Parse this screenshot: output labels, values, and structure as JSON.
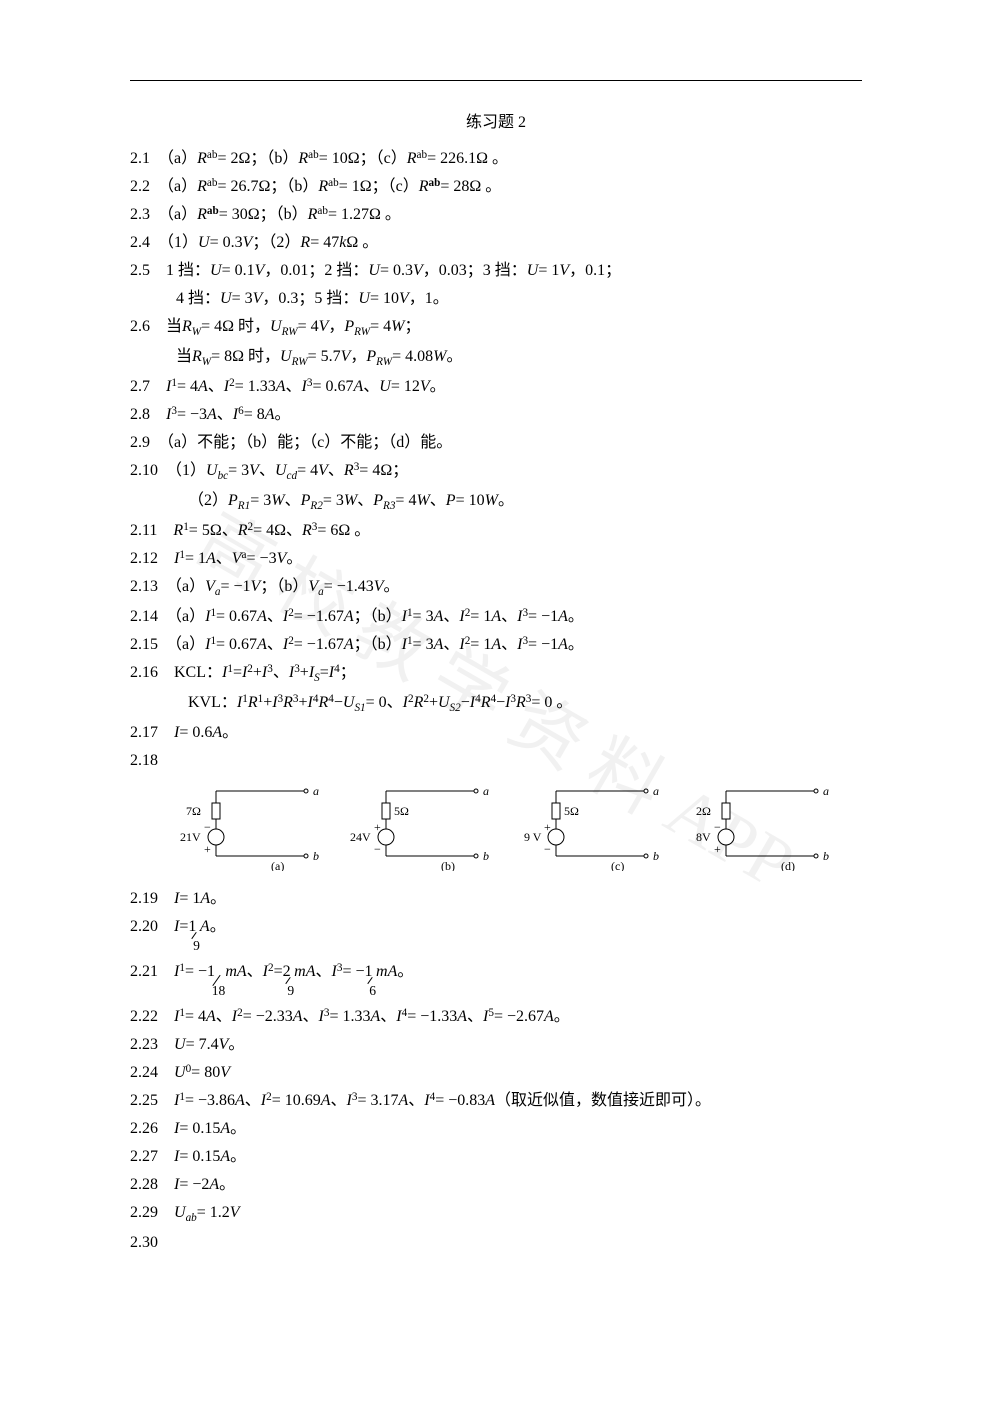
{
  "watermark": "高 校 教 学 资 料 APP",
  "title": "练习题 2",
  "lines": {
    "2_1": "2.1　（a）<span class='ital'>R</span><span class='sub'>ab</span> = 2Ω；（b）<span class='ital'>R</span><span class='sub'>ab</span> = 10Ω；（c）<span class='ital'>R</span><span class='sub'>ab</span> = 226.1Ω 。",
    "2_2": "2.2　（a）<span class='ital'>R</span><span class='sub'>ab</span> = 26.7Ω；（b）<span class='ital'>R</span><span class='sub'>ab</span> = 1Ω；（c）<span class='ital'>R</span><span class='sub'><b>ab</b></span> = 28Ω 。",
    "2_3": "2.3　（a）<span class='ital'>R</span><span class='sub'><b>ab</b></span> = 30Ω；（b）<span class='ital'>R</span><span class='sub'>ab</span> = 1.27Ω 。",
    "2_4": "2.4　（1）<span class='ital'>U</span> = 0.3<span class='ital'>V</span>；（2）<span class='ital'>R</span> = 47<span class='ital'>k</span>Ω 。",
    "2_5a": "2.5　1 挡：<span class='ital'>U</span> = 0.1<span class='ital'>V</span>，0.01；2 挡：<span class='ital'>U</span> = 0.3<span class='ital'>V</span>，0.03；3 挡：<span class='ital'>U</span> = 1<span class='ital'>V</span>，0.1；",
    "2_5b": "4 挡：<span class='ital'>U</span> = 3<span class='ital'>V</span>，0.3；5 挡：<span class='ital'>U</span> = 10<span class='ital'>V</span>，1。",
    "2_6a": "2.6　当 <span class='ital'>R<span class='sub'>W</span></span> = 4Ω 时，<span class='ital'>U<span class='sub'>RW</span></span> = 4<span class='ital'>V</span>，<span class='ital'>P<span class='sub'>RW</span></span> = 4<span class='ital'>W</span>；",
    "2_6b": "当 <span class='ital'>R<span class='sub'>W</span></span> = 8Ω 时，<span class='ital'>U<span class='sub'>RW</span></span> = 5.7<span class='ital'>V</span>，<span class='ital'>P<span class='sub'>RW</span></span> = 4.08<span class='ital'>W</span> 。",
    "2_7": "2.7　<span class='ital'>I</span><span class='sub'>1</span> = 4<span class='ital'>A</span>、<span class='ital'>I</span><span class='sub'>2</span> = 1.33<span class='ital'>A</span>、<span class='ital'>I</span><span class='sub'>3</span> = 0.67<span class='ital'>A</span>、<span class='ital'>U</span> = 12<span class='ital'>V</span> 。",
    "2_8": "2.8　<span class='ital'>I</span><span class='sub'>3</span> = −3<span class='ital'>A</span>、<span class='ital'>I</span><span class='sub'>6</span> = 8<span class='ital'>A</span> 。",
    "2_9": "2.9　（a）不能；（b）能；（c）不能；（d）能。",
    "2_10a": "2.10　（1）<span class='ital'>U<span class='sub'>bc</span></span> = 3<span class='ital'>V</span>、<span class='ital'>U<span class='sub'>cd</span></span> = 4<span class='ital'>V</span>、<span class='ital'>R</span><span class='sub'>3</span> = 4Ω；",
    "2_10b": "（2）<span class='ital'>P<span class='sub'>R1</span></span> = 3<span class='ital'>W</span>、<span class='ital'>P<span class='sub'>R2</span></span> = 3<span class='ital'>W</span>、<span class='ital'>P<span class='sub'>R3</span></span> = 4<span class='ital'>W</span>、<span class='ital'>P</span> = 10<span class='ital'>W</span> 。",
    "2_11": "2.11　<span class='ital'>R</span><span class='sub'>1</span> = 5Ω、<span class='ital'>R</span><span class='sub'>2</span> = 4Ω、<span class='ital'>R</span><span class='sub'>3</span> = 6Ω 。",
    "2_12": "2.12　<span class='ital'>I</span><span class='sub'>1</span> = 1<span class='ital'>A</span>、<span class='ital'>V</span><span class='sub'>a</span> = −3<span class='ital'>V</span> 。",
    "2_13": "2.13　（a）<span class='ital'>V<span class='sub'>a</span></span> = −1<span class='ital'>V</span>；（b）<span class='ital'>V<span class='sub'>a</span></span> = −1.43<span class='ital'>V</span> 。",
    "2_14": "2.14　（a）<span class='ital'>I</span><span class='sub'>1</span> = 0.67<span class='ital'>A</span>、<span class='ital'>I</span><span class='sub'>2</span> = −1.67<span class='ital'>A</span>；（b）<span class='ital'>I</span><span class='sub'>1</span> = 3<span class='ital'>A</span>、<span class='ital'>I</span><span class='sub'>2</span> = 1<span class='ital'>A</span>、<span class='ital'>I</span><span class='sub'>3</span> = −1<span class='ital'>A</span> 。",
    "2_15": "2.15　（a）<span class='ital'>I</span><span class='sub'>1</span> = 0.67<span class='ital'>A</span>、<span class='ital'>I</span><span class='sub'>2</span> = −1.67<span class='ital'>A</span>；（b）<span class='ital'>I</span><span class='sub'>1</span> = 3<span class='ital'>A</span>、<span class='ital'>I</span><span class='sub'>2</span> = 1<span class='ital'>A</span>、<span class='ital'>I</span><span class='sub'>3</span> = −1<span class='ital'>A</span> 。",
    "2_16a": "2.16　KCL：<span class='ital'>I</span><span class='sub'>1</span> = <span class='ital'>I</span><span class='sub'>2</span> + <span class='ital'>I</span><span class='sub'>3</span>、<span class='ital'>I</span><span class='sub'>3</span> + <span class='ital'>I<span class='sub'>S</span></span> = <span class='ital'>I</span><span class='sub'>4</span>；",
    "2_16b": "KVL：<span class='ital'>I</span><span class='sub'>1</span><span class='ital'>R</span><span class='sub'>1</span> + <span class='ital'>I</span><span class='sub'>3</span><span class='ital'>R</span><span class='sub'>3</span> + <span class='ital'>I</span><span class='sub'>4</span><span class='ital'>R</span><span class='sub'>4</span> − <span class='ital'>U<span class='sub'>S1</span></span> = 0、<span class='ital'>I</span><span class='sub'>2</span><span class='ital'>R</span><span class='sub'>2</span> + <span class='ital'>U<span class='sub'>S2</span></span> − <span class='ital'>I</span><span class='sub'>4</span><span class='ital'>R</span><span class='sub'>4</span> − <span class='ital'>I</span><span class='sub'>3</span><span class='ital'>R</span><span class='sub'>3</span> = 0 。",
    "2_17": "2.17　<span class='ital'>I</span> = 0.6<span class='ital'>A</span> 。",
    "2_18": "2.18",
    "2_19": "2.19　<span class='ital'>I</span> = 1<span class='ital'>A</span> 。",
    "2_20": "2.20　<span class='ital'>I</span> = <span class='frac'><span class='n'>1</span><span class='frac-line'></span><span class='d'>9</span></span> <span class='ital'>A</span> 。",
    "2_21": "2.21　<span class='ital'>I</span><span class='sub'>1</span> = − <span class='frac'><span class='n'>1</span><span class='frac-line'></span><span class='d'>18</span></span> <span class='ital'>mA</span>、<span class='ital'>I</span><span class='sub'>2</span> = <span class='frac'><span class='n'>2</span><span class='frac-line'></span><span class='d'>9</span></span> <span class='ital'>mA</span>、<span class='ital'>I</span><span class='sub'>3</span> = − <span class='frac'><span class='n'>1</span><span class='frac-line'></span><span class='d'>6</span></span> <span class='ital'>mA</span> 。",
    "2_22": "2.22　<span class='ital'>I</span><span class='sub'>1</span> = 4<span class='ital'>A</span>、<span class='ital'>I</span><span class='sub'>2</span> = −2.33<span class='ital'>A</span>、<span class='ital'>I</span><span class='sub'>3</span> = 1.33<span class='ital'>A</span>、<span class='ital'>I</span><span class='sub'>4</span> = −1.33<span class='ital'>A</span>、<span class='ital'>I</span><span class='sub'>5</span> = −2.67<span class='ital'>A</span> 。",
    "2_23": "2.23　<span class='ital'>U</span> = 7.4<span class='ital'>V</span> 。",
    "2_24": "2.24　<span class='ital'>U</span><span class='sub'>0</span> = 80<span class='ital'>V</span>",
    "2_25": "2.25　<span class='ital'>I</span><span class='sub'>1</span> = −3.86<span class='ital'>A</span>、<span class='ital'>I</span><span class='sub'>2</span> = 10.69<span class='ital'>A</span>、<span class='ital'>I</span><span class='sub'>3</span> = 3.17<span class='ital'>A</span>、<span class='ital'>I</span><span class='sub'>4</span> = −0.83<span class='ital'>A</span>（取近似值，数值接近即可）。",
    "2_26": "2.26　<span class='ital'>I</span> = 0.15<span class='ital'>A</span> 。",
    "2_27": "2.27　<span class='ital'>I</span> = 0.15<span class='ital'>A</span> 。",
    "2_28": "2.28　<span class='ital'>I</span> = −2<span class='ital'>A</span> 。",
    "2_29": "2.29　<span class='ital'>U<span class='sub'>ab</span></span> = 1.2<span class='ital'>V</span>",
    "2_30": "2.30"
  },
  "diagrams": [
    {
      "r": "7Ω",
      "v": "21V",
      "pol_top": "−",
      "pol_bot": "+",
      "label": "(a)"
    },
    {
      "r": "5Ω",
      "v": "24V",
      "pol_top": "+",
      "pol_bot": "−",
      "label": "(b)"
    },
    {
      "r": "5Ω",
      "v": "9 V",
      "pol_top": "+",
      "pol_bot": "−",
      "label": "(c)"
    },
    {
      "r": "2Ω",
      "v": "8V",
      "pol_top": "−",
      "pol_bot": "+",
      "label": "(d)"
    }
  ],
  "colors": {
    "text": "#000000",
    "bg": "#ffffff",
    "wm": "rgba(200,200,200,0.25)"
  }
}
